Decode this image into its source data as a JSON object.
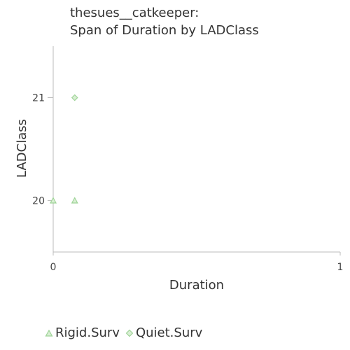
{
  "chart_data": {
    "type": "scatter",
    "title_lines": [
      "thesues__catkeeper:",
      "Span of Duration by LADClass"
    ],
    "xlabel": "Duration",
    "ylabel": "LADClass",
    "xlim": [
      0,
      1
    ],
    "ylim": [
      19.5,
      21.5
    ],
    "x_ticks": [
      0,
      1
    ],
    "y_ticks": [
      20,
      21
    ],
    "grid": false,
    "legend_position": "bottom-left",
    "series": [
      {
        "name": "Rigid.Surv",
        "marker": "triangle",
        "color": "#a8d8a0",
        "points": [
          {
            "x": 0,
            "y": 20
          },
          {
            "x": 0.075,
            "y": 20
          }
        ]
      },
      {
        "name": "Quiet.Surv",
        "marker": "diamond",
        "color": "#a8d8a0",
        "points": [
          {
            "x": 0.075,
            "y": 21
          }
        ]
      }
    ]
  }
}
